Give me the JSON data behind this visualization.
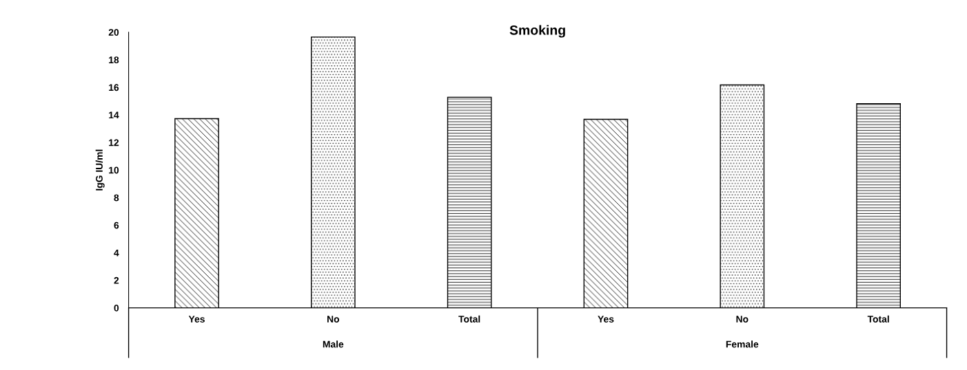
{
  "chart_data": {
    "type": "bar",
    "title": "Smoking",
    "ylabel": "IgG IU/ml",
    "categories": [
      "Yes",
      "No",
      "Total",
      "Yes",
      "No",
      "Total"
    ],
    "values": [
      13.73,
      19.65,
      15.28,
      13.68,
      16.17,
      14.81
    ],
    "colors": [
      "#000000",
      "#000000",
      "#000000",
      "#000000",
      "#000000",
      "#000000"
    ],
    "ylim": [
      0,
      20
    ],
    "yticks": [
      0,
      2,
      4,
      6,
      8,
      10,
      12,
      14,
      16,
      18,
      20
    ],
    "annotations": [
      "Male",
      "Female"
    ],
    "grid": false,
    "legend": false
  }
}
